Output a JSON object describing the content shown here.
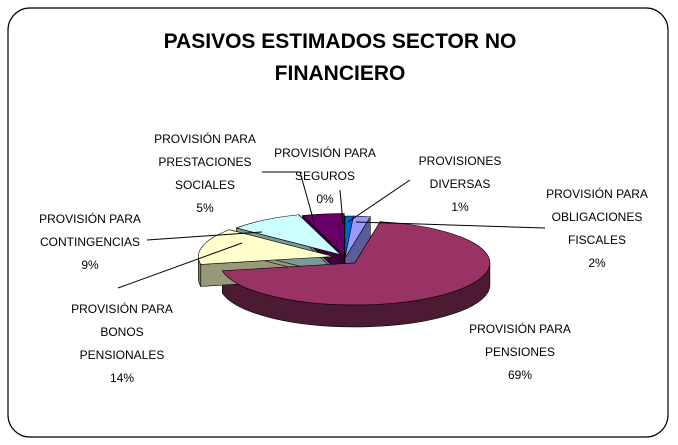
{
  "chart_data": {
    "type": "pie3d",
    "title": "PASIVOS ESTIMADOS SECTOR NO FINANCIERO",
    "categories": [
      "PROVISIÓN PARA SEGUROS",
      "PROVISIONES DIVERSAS",
      "PROVISIÓN PARA OBLIGACIONES FISCALES",
      "PROVISIÓN PARA PENSIONES",
      "PROVISIÓN PARA BONOS PENSIONALES",
      "PROVISIÓN PARA CONTINGENCIAS",
      "PROVISIÓN PARA PRESTACIONES SOCIALES"
    ],
    "values": [
      0,
      1,
      2,
      69,
      14,
      9,
      5
    ],
    "value_labels": [
      "0%",
      "1%",
      "2%",
      "69%",
      "14%",
      "9%",
      "5%"
    ],
    "colors": [
      "#ffff99",
      "#0066cc",
      "#9999ff",
      "#993366",
      "#ffffcc",
      "#ccffff",
      "#660066"
    ]
  }
}
